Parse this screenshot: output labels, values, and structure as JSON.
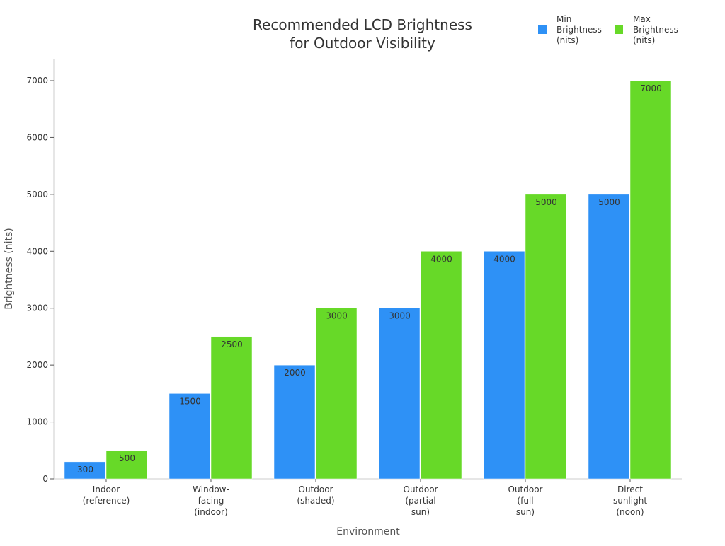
{
  "chart_data": {
    "type": "bar",
    "title": [
      "Recommended LCD Brightness",
      "for Outdoor Visibility"
    ],
    "xlabel": "Environment",
    "ylabel": "Brightness (nits)",
    "ylim": [
      0,
      7350
    ],
    "yticks": [
      0,
      1000,
      2000,
      3000,
      4000,
      5000,
      6000,
      7000
    ],
    "grid": false,
    "legend_position": "top-right",
    "categories": [
      [
        "Indoor",
        "(reference)"
      ],
      [
        "Window-",
        "facing",
        "(indoor)"
      ],
      [
        "Outdoor",
        "(shaded)"
      ],
      [
        "Outdoor",
        "(partial",
        "sun)"
      ],
      [
        "Outdoor",
        "(full",
        "sun)"
      ],
      [
        "Direct",
        "sunlight",
        "(noon)"
      ]
    ],
    "series": [
      {
        "name": [
          "Min",
          "Brightness",
          "(nits)"
        ],
        "color": "#2e91f6",
        "values": [
          300,
          1500,
          2000,
          3000,
          4000,
          5000
        ]
      },
      {
        "name": [
          "Max",
          "Brightness",
          "(nits)"
        ],
        "color": "#67d928",
        "values": [
          500,
          2500,
          3000,
          4000,
          5000,
          7000
        ]
      }
    ]
  }
}
